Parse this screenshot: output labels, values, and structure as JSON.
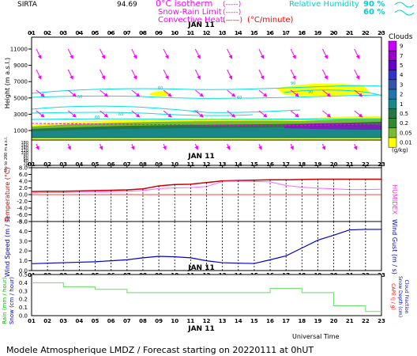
{
  "header": {
    "station": "SIRTA",
    "coords": "94.69",
    "legend_left": [
      {
        "label": "0°C isotherm",
        "style": "(-----)",
        "color": "#ff00ff"
      },
      {
        "label": "Snow-Rain Limit",
        "style": "(-----)",
        "color": "#ff00ff"
      },
      {
        "label": "Convective Heat.",
        "style": "(——)",
        "unit": "(°C/minute)",
        "color": "#ff0000"
      }
    ],
    "legend_right": {
      "label": "Relative Humidity",
      "levels": [
        "90 %",
        "60 %"
      ],
      "color": "#00e0e0"
    }
  },
  "footer": {
    "universal_time": "Universal Time",
    "forecast": "Modele Atmospherique LMDZ / Forecast starting on 20220111 at 0hUT"
  },
  "hours": [
    "01",
    "02",
    "03",
    "04",
    "05",
    "06",
    "07",
    "08",
    "09",
    "10",
    "11",
    "12",
    "13",
    "14",
    "15",
    "16",
    "17",
    "18",
    "19",
    "20",
    "21",
    "22",
    "23"
  ],
  "date_label": "JAN 11",
  "colors": {
    "magenta": "#ff00ff",
    "cyan": "#00e0e0",
    "red": "#ff0000",
    "blue": "#0000ff",
    "green": "#00cc00",
    "frame": "#000000"
  },
  "chart_data": [
    {
      "type": "heatmap",
      "ylabel": "Height (m a.s.l.)",
      "ylabel_low": "Up to 200 m a.s.l.",
      "yticks_upper": [
        "11000",
        "9000",
        "7000",
        "5000",
        "3000",
        "1000"
      ],
      "yticks_lower": [
        "180",
        "160",
        "140",
        "120",
        "100",
        "80",
        "60",
        "40",
        "20",
        "0"
      ],
      "colorbar": {
        "title": "Clouds",
        "unit": "(g/kg)",
        "labels": [
          "9",
          "7",
          "5",
          "4",
          "3",
          "2",
          "1",
          "0.5",
          "0.2",
          "0.05",
          "0.01"
        ],
        "colors": [
          "#cc00ff",
          "#9900cc",
          "#6600cc",
          "#3333cc",
          "#3355aa",
          "#2277aa",
          "#1a8888",
          "#227744",
          "#338833",
          "#77bb33",
          "#ffff00"
        ]
      },
      "rh_labels": [
        "60",
        "60",
        "60",
        "60",
        "60",
        "60",
        "90",
        "90"
      ]
    },
    {
      "type": "line",
      "ylabel": "Temperature (°C)",
      "ylabel_right": "HUMIDEX",
      "yticks": [
        "8.0",
        "6.0",
        "4.0",
        "2.0",
        "0.0",
        "-2.0",
        "-4.0",
        "-6.0",
        "-8.0"
      ],
      "ylim": [
        -8,
        8
      ],
      "x": [
        1,
        2,
        3,
        4,
        5,
        6,
        7,
        8,
        9,
        10,
        11,
        12,
        13,
        14,
        15,
        16,
        17,
        18,
        19,
        20,
        21,
        22,
        23
      ],
      "series": [
        {
          "values": [
            0.9,
            1.0,
            1.0,
            1.1,
            1.2,
            1.3,
            1.4,
            1.7,
            2.6,
            3.0,
            3.1,
            3.6,
            4.1,
            4.2,
            4.3,
            4.4,
            4.4,
            4.5,
            4.6,
            4.6,
            4.6,
            4.6,
            4.6
          ],
          "color": "#cc0000"
        },
        {
          "values": [
            0.5,
            0.6,
            0.6,
            0.7,
            0.8,
            0.9,
            1.0,
            1.2,
            1.8,
            2.0,
            2.1,
            2.4,
            3.9,
            4.0,
            3.9,
            3.8,
            2.7,
            2.2,
            1.9,
            1.7,
            1.5,
            1.5,
            1.6
          ],
          "color": "#ff66ff"
        }
      ]
    },
    {
      "type": "line",
      "ylabel": "Wind Speed (m / s)",
      "ylabel_right": "Wind Gust (m / s)",
      "yticks": [
        "5.0",
        "4.0",
        "3.0",
        "2.0",
        "1.0",
        "0.0"
      ],
      "ylim": [
        0,
        5
      ],
      "x": [
        1,
        2,
        3,
        4,
        5,
        6,
        7,
        8,
        9,
        10,
        11,
        12,
        13,
        14,
        15,
        16,
        17,
        18,
        19,
        20,
        21,
        22,
        23
      ],
      "series": [
        {
          "values": [
            0.7,
            0.75,
            0.8,
            0.85,
            0.9,
            1.0,
            1.1,
            1.3,
            1.45,
            1.4,
            1.3,
            1.0,
            0.8,
            0.75,
            0.72,
            1.1,
            1.5,
            2.3,
            3.1,
            3.6,
            4.15,
            4.2,
            4.2
          ],
          "color": "#0000cc"
        }
      ]
    },
    {
      "type": "bar",
      "ylabel": "Rain (mm / hour)",
      "ylabel2": "Snow (cm / hour)",
      "ylabel_right": "CAPE (J / g)",
      "ylabel_right2": "Snow Depth (cm)",
      "ylabel_right3": "Cloud Fraction",
      "yticks": [
        "0.5",
        "0.4",
        "0.3",
        "0.2",
        "0.1",
        "0.0"
      ],
      "ylim": [
        0,
        0.5
      ],
      "x": [
        1,
        2,
        3,
        4,
        5,
        6,
        7,
        8,
        9,
        10,
        11,
        12,
        13,
        14,
        15,
        16,
        17,
        18,
        19,
        20,
        21,
        22,
        23
      ],
      "values": [
        0.4,
        0.4,
        0.35,
        0.35,
        0.32,
        0.32,
        0.28,
        0.28,
        0.28,
        0.28,
        0.28,
        0.28,
        0.28,
        0.28,
        0.28,
        0.33,
        0.33,
        0.28,
        0.28,
        0.12,
        0.12,
        0.05,
        0.05
      ],
      "color": "#66dd66"
    }
  ]
}
